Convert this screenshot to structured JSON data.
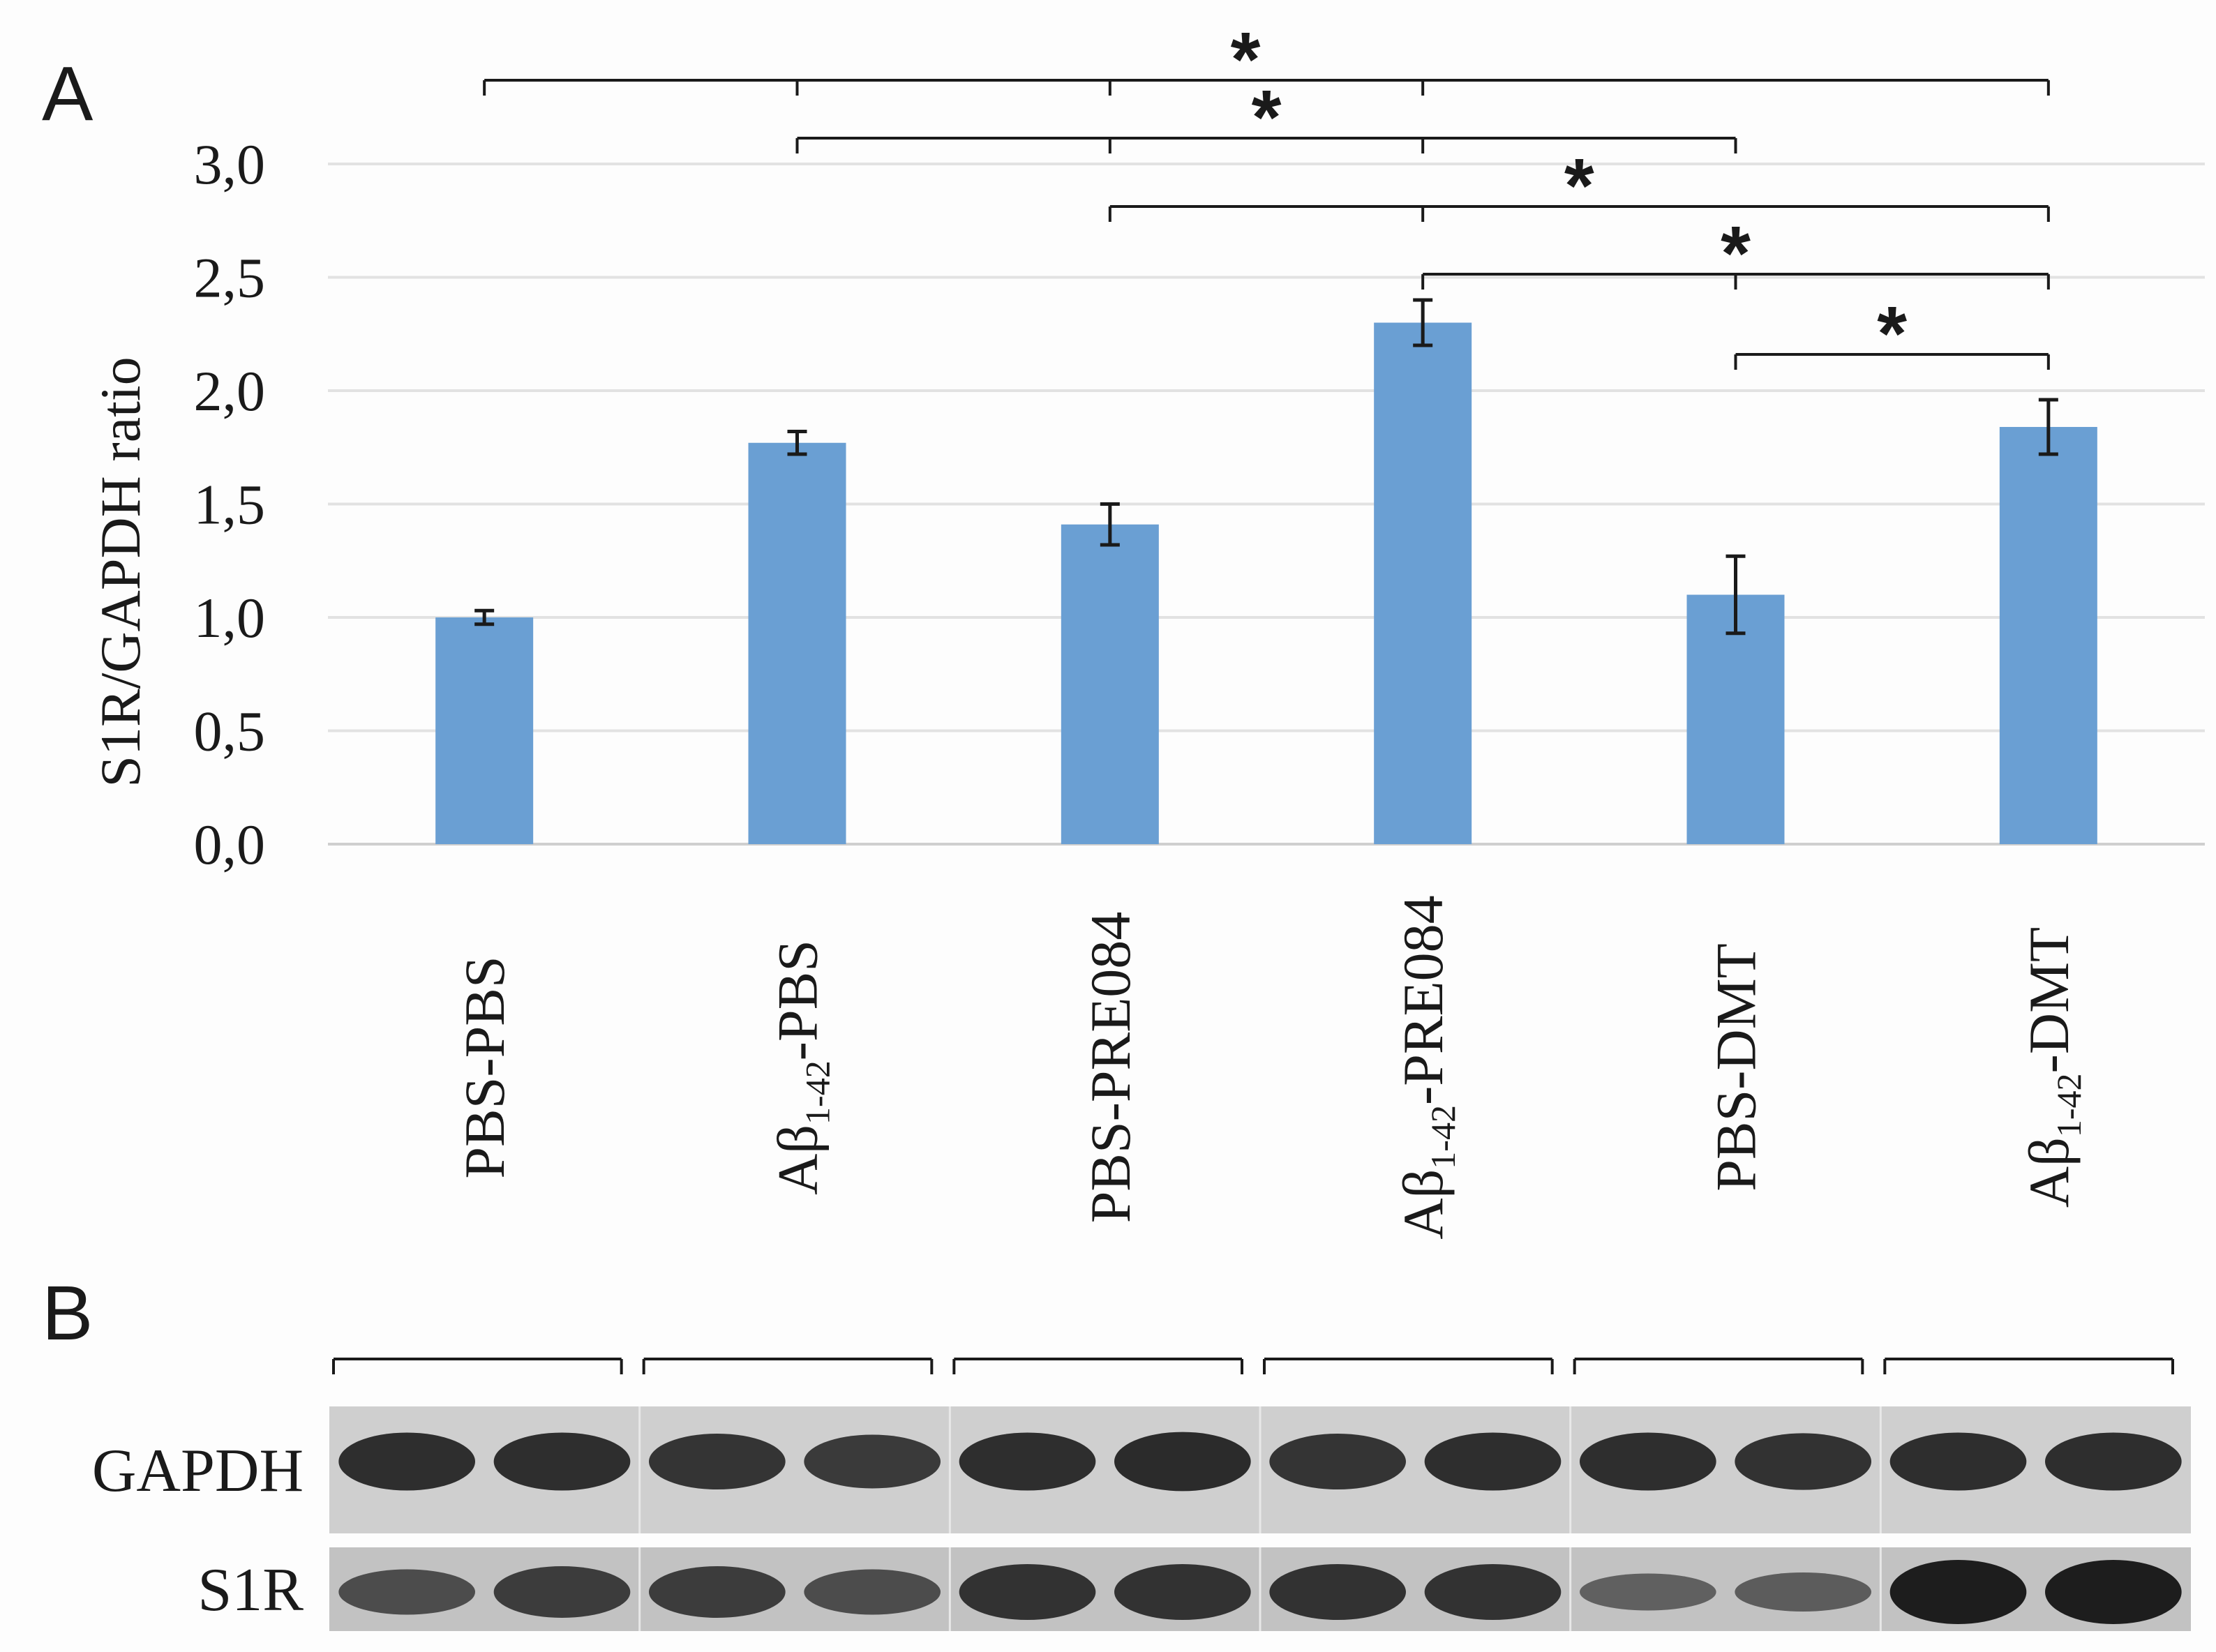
{
  "panels": {
    "a_label": "A",
    "b_label": "B"
  },
  "chart_data": {
    "type": "bar",
    "title": "",
    "ylabel": "S1R/GAPDH ratio",
    "xlabel": "",
    "ylim": [
      0,
      3
    ],
    "yticks": [
      "0,0",
      "0,5",
      "1,0",
      "1,5",
      "2,0",
      "2,5",
      "3,0"
    ],
    "grid": true,
    "categories": [
      {
        "pre": "PBS-PBS",
        "sub": "",
        "post": ""
      },
      {
        "pre": "Aβ",
        "sub": "1-42",
        "post": "-PBS"
      },
      {
        "pre": "PBS-PRE084",
        "sub": "",
        "post": ""
      },
      {
        "pre": "Aβ",
        "sub": "1-42",
        "post": "-PRE084"
      },
      {
        "pre": "PBS-DMT",
        "sub": "",
        "post": ""
      },
      {
        "pre": "Aβ",
        "sub": "1-42",
        "post": "-DMT"
      }
    ],
    "values": [
      1.0,
      1.77,
      1.41,
      2.3,
      1.1,
      1.84
    ],
    "errors": [
      0.03,
      0.05,
      0.09,
      0.1,
      0.17,
      0.12
    ],
    "bar_color": "#6a9fd3",
    "significance": [
      {
        "from": 0,
        "to": 5,
        "mid": [
          1,
          2,
          3
        ],
        "label": "*"
      },
      {
        "from": 1,
        "to": 4,
        "mid": [
          2,
          3
        ],
        "label": "*"
      },
      {
        "from": 2,
        "to": 5,
        "mid": [
          3
        ],
        "label": "*"
      },
      {
        "from": 3,
        "to": 5,
        "mid": [
          4
        ],
        "label": "*"
      },
      {
        "from": 4,
        "to": 5,
        "mid": [],
        "label": "*"
      }
    ]
  },
  "blot": {
    "rows": [
      {
        "label": "GAPDH",
        "intensities": [
          0.85,
          0.85,
          0.8,
          0.75,
          0.85,
          0.88,
          0.8,
          0.85,
          0.85,
          0.82,
          0.85,
          0.85
        ]
      },
      {
        "label": "S1R",
        "intensities": [
          0.55,
          0.7,
          0.7,
          0.55,
          0.8,
          0.8,
          0.8,
          0.8,
          0.35,
          0.4,
          1.0,
          1.0
        ]
      }
    ]
  }
}
